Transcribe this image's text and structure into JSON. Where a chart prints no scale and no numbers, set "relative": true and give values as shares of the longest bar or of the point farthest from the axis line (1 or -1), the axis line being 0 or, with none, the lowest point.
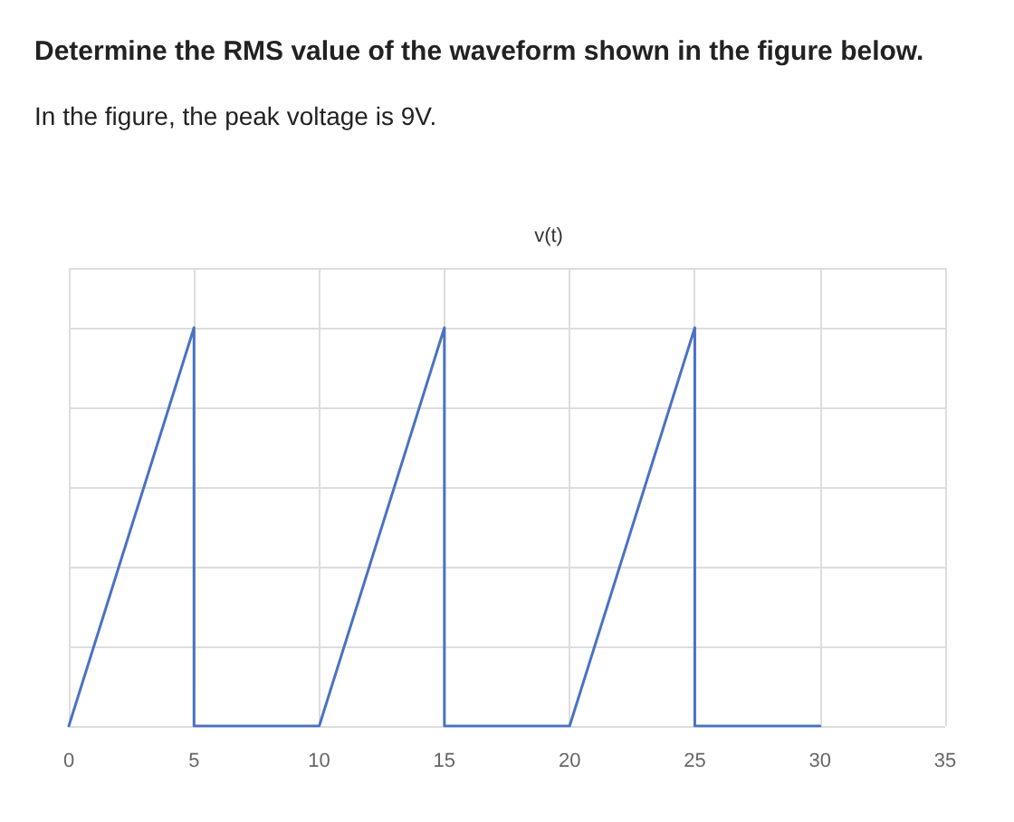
{
  "chart_data": {
    "type": "line",
    "title": "Determine the RMS value of the waveform shown in the figure below.",
    "subtitle": "In the figure, the peak voltage is 9V.",
    "ylabel": "v(t)",
    "relative": true,
    "series": [
      {
        "color": "#4a72c4",
        "x": [
          0,
          5,
          5,
          10,
          15,
          15,
          20,
          25,
          25,
          30
        ],
        "values": [
          0,
          1,
          0,
          0,
          1,
          0,
          0,
          1,
          0,
          0
        ]
      }
    ],
    "xlim": [
      0,
      35
    ],
    "xticks": [
      0,
      5,
      10,
      15,
      20,
      25,
      30,
      35
    ],
    "grid": true,
    "marker": "none",
    "line_style": "solid"
  }
}
